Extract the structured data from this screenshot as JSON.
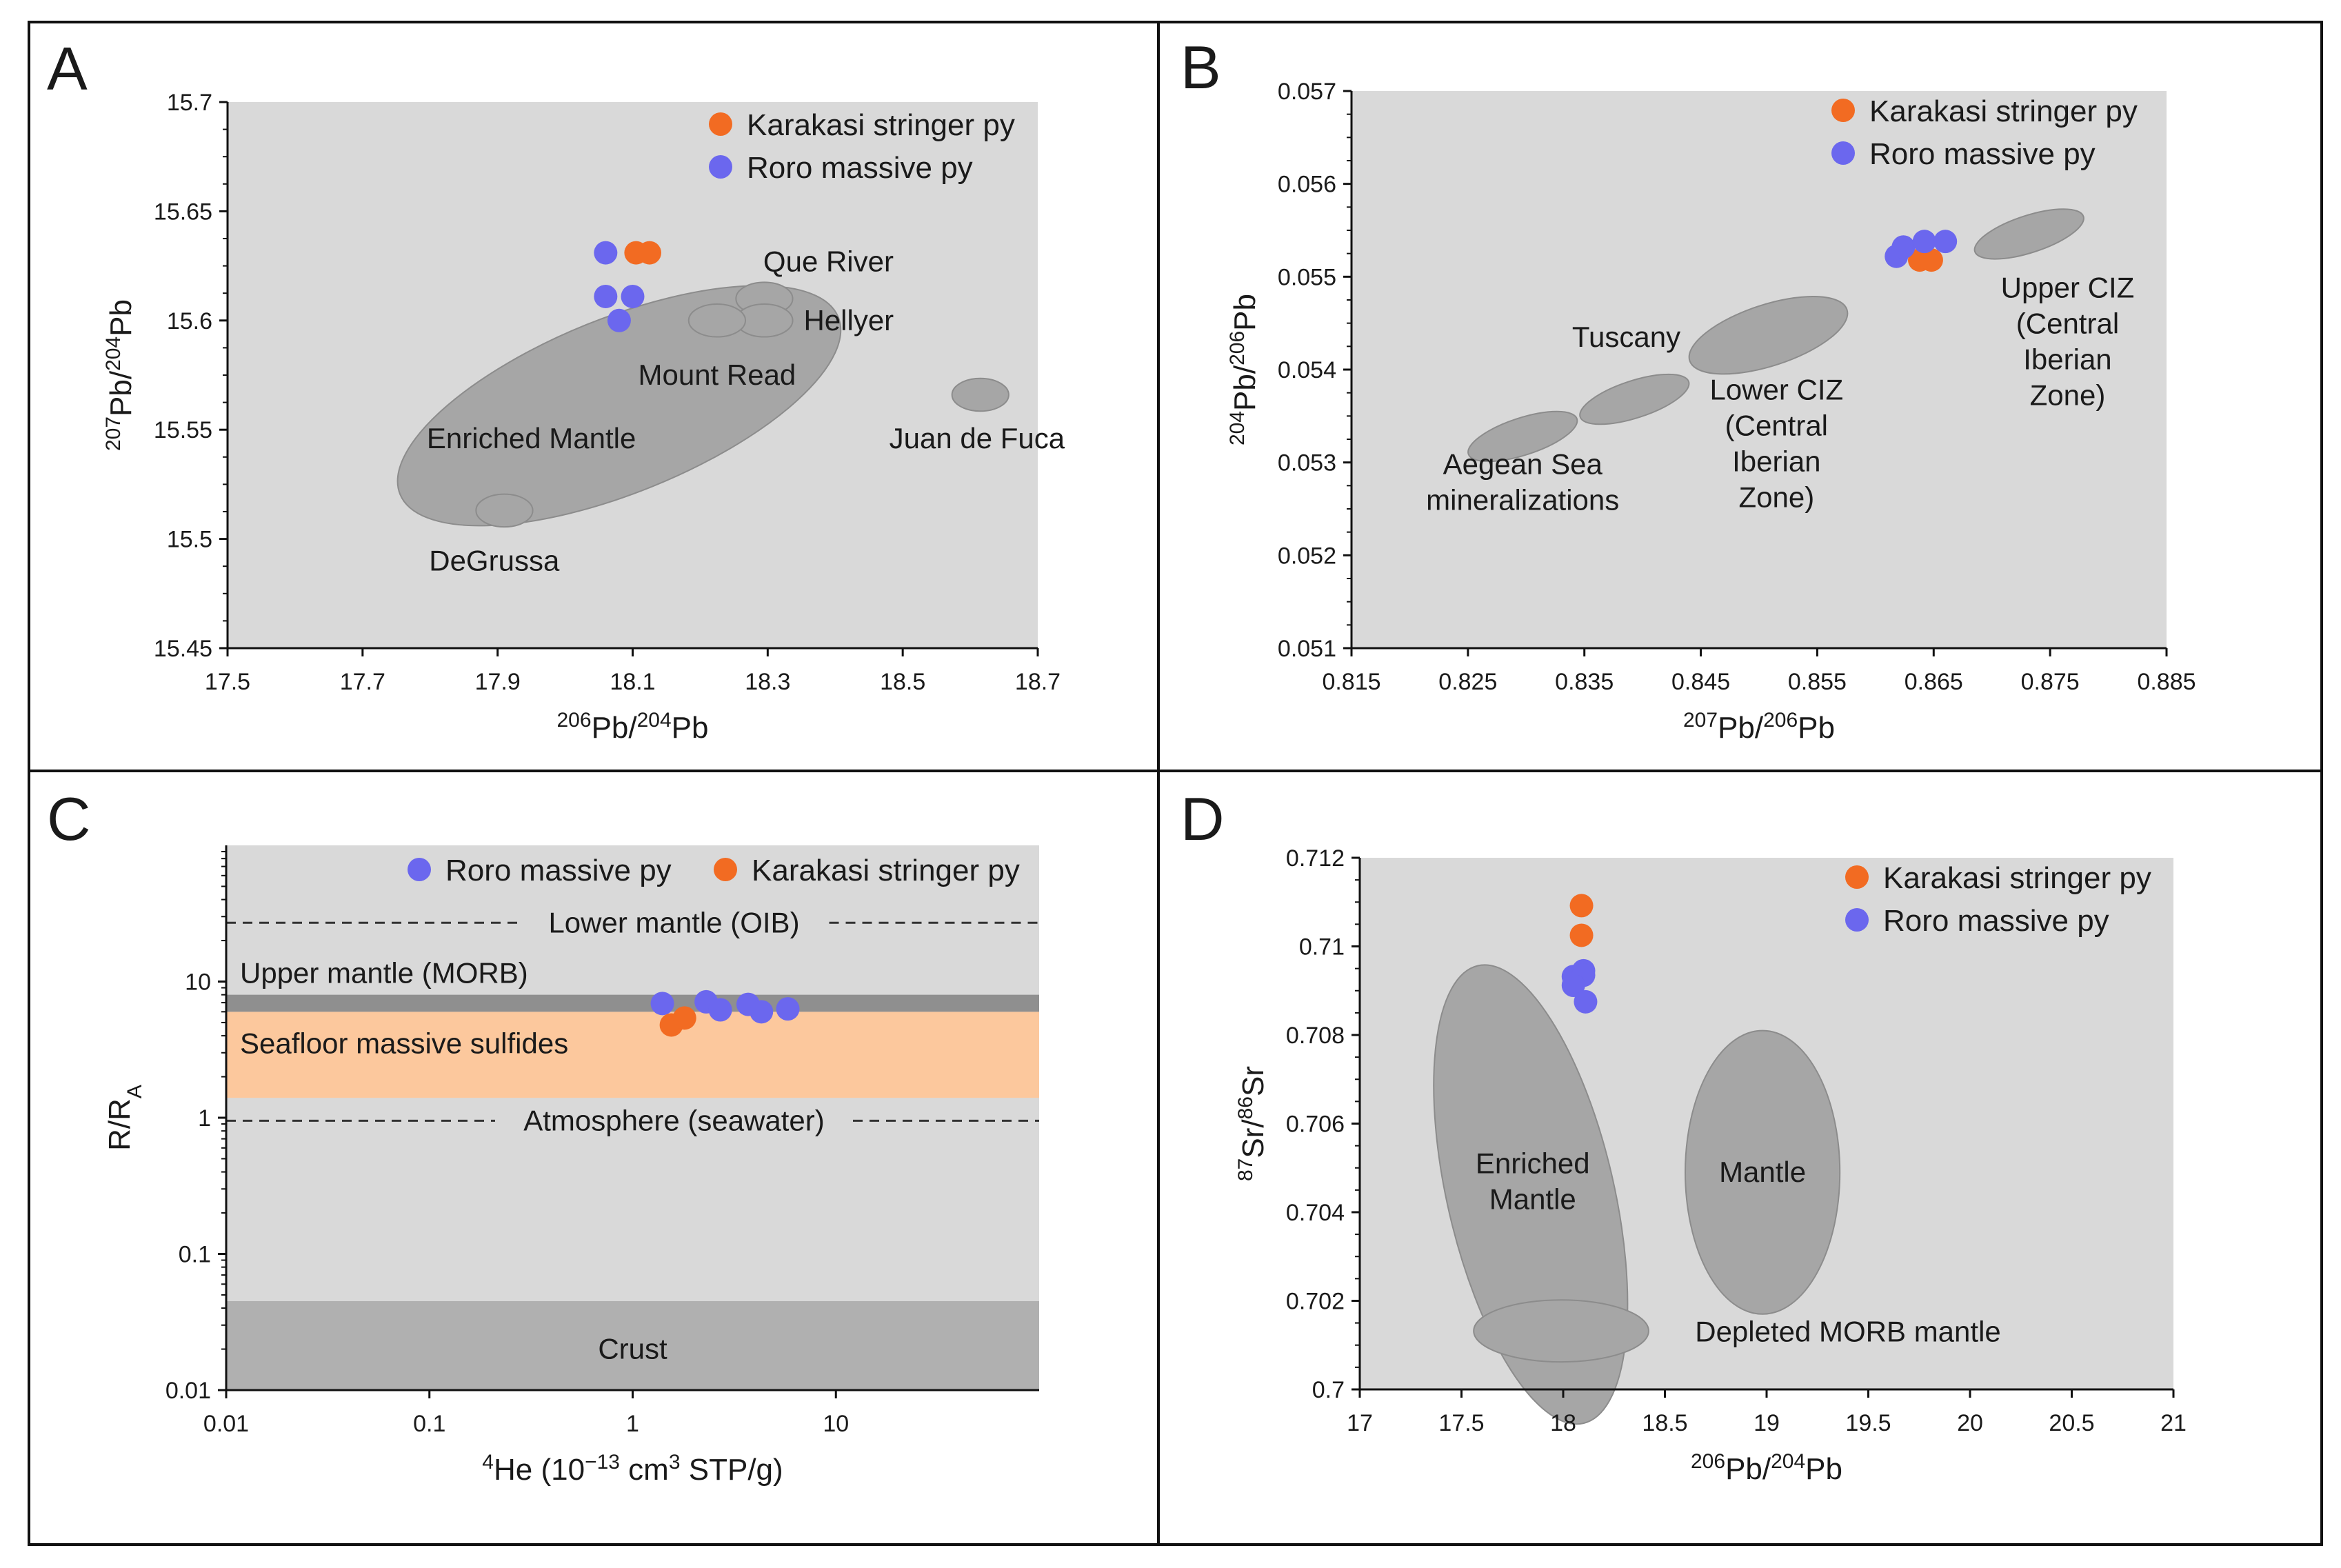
{
  "colors": {
    "karakasi": "#f26b22",
    "roro": "#6b67ee",
    "plot_bg": "#d9d9d9",
    "field_fill": "#a6a6a6",
    "field_stroke": "#8c8c8c",
    "crust_fill": "#b0b0b0",
    "upper_mantle_band": "#8f8f8f",
    "sulfide_band": "#fcc89d"
  },
  "chart_data": [
    {
      "id": "A",
      "type": "scatter",
      "panel_label": "A",
      "xlabel": {
        "sup1": "206",
        "base1": "Pb/",
        "sup2": "204",
        "base2": "Pb"
      },
      "ylabel": {
        "sup1": "207",
        "base1": "Pb/",
        "sup2": "204",
        "base2": "Pb"
      },
      "xlim": [
        17.5,
        18.7
      ],
      "ylim": [
        15.45,
        15.7
      ],
      "xticks": [
        "17.5",
        "17.7",
        "17.9",
        "18.1",
        "18.3",
        "18.5",
        "18.7"
      ],
      "yticks": [
        "15.45",
        "15.5",
        "15.55",
        "15.6",
        "15.65",
        "15.7"
      ],
      "legend": [
        "Karakasi stringer py",
        "Roro massive py"
      ],
      "series": [
        {
          "name": "Karakasi stringer py",
          "color_key": "karakasi",
          "points": [
            [
              18.105,
              15.631
            ],
            [
              18.125,
              15.631
            ]
          ]
        },
        {
          "name": "Roro massive py",
          "color_key": "roro",
          "points": [
            [
              18.06,
              15.631
            ],
            [
              18.06,
              15.611
            ],
            [
              18.08,
              15.6
            ],
            [
              18.1,
              15.611
            ]
          ]
        }
      ],
      "fields": [
        {
          "label": "Enriched Mantle",
          "cx": 18.08,
          "cy": 15.561,
          "rx": 0.35,
          "ry": 0.04,
          "rot": -22
        },
        {
          "label": "Que River",
          "cx": 18.295,
          "cy": 15.61,
          "rx": 0.042,
          "ry": 0.0075,
          "rot": 0
        },
        {
          "label": "Hellyer",
          "cx": 18.295,
          "cy": 15.6,
          "rx": 0.042,
          "ry": 0.0075,
          "rot": 0
        },
        {
          "label": "Mount Read",
          "cx": 18.225,
          "cy": 15.6,
          "rx": 0.042,
          "ry": 0.0075,
          "rot": 0
        },
        {
          "label": "Juan de Fuca",
          "cx": 18.615,
          "cy": 15.566,
          "rx": 0.042,
          "ry": 0.0075,
          "rot": 0
        },
        {
          "label": "DeGrussa",
          "cx": 17.91,
          "cy": 15.513,
          "rx": 0.042,
          "ry": 0.0075,
          "rot": 0
        }
      ],
      "annotations": [
        {
          "text": "Enriched Mantle",
          "x": 17.95,
          "y": 15.546
        },
        {
          "text": "Que River",
          "x": 18.39,
          "y": 15.627
        },
        {
          "text": "Hellyer",
          "x": 18.42,
          "y": 15.6
        },
        {
          "text": "Mount Read",
          "x": 18.225,
          "y": 15.575
        },
        {
          "text": "Juan de Fuca",
          "x": 18.61,
          "y": 15.546
        },
        {
          "text": "DeGrussa",
          "x": 17.895,
          "y": 15.49
        }
      ]
    },
    {
      "id": "B",
      "type": "scatter",
      "panel_label": "B",
      "xlabel": {
        "sup1": "207",
        "base1": "Pb/",
        "sup2": "206",
        "base2": "Pb"
      },
      "ylabel": {
        "sup1": "204",
        "base1": "Pb/",
        "sup2": "206",
        "base2": "Pb"
      },
      "xlim": [
        0.815,
        0.885
      ],
      "ylim": [
        0.051,
        0.057
      ],
      "xticks": [
        "0.815",
        "0.825",
        "0.835",
        "0.845",
        "0.855",
        "0.865",
        "0.875",
        "0.885"
      ],
      "yticks": [
        "0.051",
        "0.052",
        "0.053",
        "0.054",
        "0.055",
        "0.056",
        "0.057"
      ],
      "legend": [
        "Karakasi stringer py",
        "Roro massive py"
      ],
      "series": [
        {
          "name": "Karakasi stringer py",
          "color_key": "karakasi",
          "points": [
            [
              0.8638,
              0.05518
            ],
            [
              0.8648,
              0.05518
            ]
          ]
        },
        {
          "name": "Roro massive py",
          "color_key": "roro",
          "points": [
            [
              0.8618,
              0.05522
            ],
            [
              0.8624,
              0.05532
            ],
            [
              0.8642,
              0.05538
            ],
            [
              0.866,
              0.05538
            ]
          ]
        }
      ],
      "fields": [
        {
          "label": "Aegean Sea mineralizations",
          "cx": 0.8297,
          "cy": 0.05328,
          "rx": 0.0049,
          "ry": 0.0002,
          "rot": -18
        },
        {
          "label": "Tuscany",
          "cx": 0.8393,
          "cy": 0.05368,
          "rx": 0.0049,
          "ry": 0.0002,
          "rot": -18
        },
        {
          "label": "Lower CIZ (Central Iberian Zone)",
          "cx": 0.8508,
          "cy": 0.05437,
          "rx": 0.0071,
          "ry": 0.00033,
          "rot": -18
        },
        {
          "label": "Upper CIZ (Central Iberian Zone)",
          "cx": 0.8732,
          "cy": 0.05546,
          "rx": 0.0049,
          "ry": 0.0002,
          "rot": -18
        }
      ],
      "annotations": [
        {
          "lines": [
            "Aegean Sea",
            "mineralizations"
          ],
          "x": 0.8297,
          "y": 0.05298
        },
        {
          "lines": [
            "Tuscany"
          ],
          "x": 0.8386,
          "y": 0.05435
        },
        {
          "lines": [
            "Lower CIZ",
            "(Central",
            "Iberian",
            "Zone)"
          ],
          "x": 0.8515,
          "y": 0.05378
        },
        {
          "lines": [
            "Upper CIZ",
            "(Central",
            "Iberian",
            "Zone)"
          ],
          "x": 0.8765,
          "y": 0.05488
        }
      ]
    },
    {
      "id": "C",
      "type": "scatter",
      "panel_label": "C",
      "xscale": "log",
      "yscale": "log",
      "xlabel": {
        "sup1": "4",
        "base1": "He (10",
        "sup2": "−13",
        "base2": " cm",
        "sup3": "3",
        "base3": " STP/g)"
      },
      "ylabel": {
        "base1": "R/R",
        "sub1": "A"
      },
      "xlim": [
        0.01,
        100
      ],
      "ylim": [
        0.01,
        100
      ],
      "xticks": [
        "0.01",
        "0.1",
        "1",
        "10"
      ],
      "yticks": [
        "0.01",
        "0.1",
        "1",
        "10"
      ],
      "legend": [
        "Roro massive py",
        "Karakasi stringer py"
      ],
      "bands": [
        {
          "label": "Crust",
          "from": 0.01,
          "to": 0.045,
          "color_key": "crust_fill"
        },
        {
          "label": "Seafloor massive sulfides",
          "from": 1.4,
          "to": 6.0,
          "color_key": "sulfide_band"
        },
        {
          "label": "Upper mantle (MORB)",
          "from": 6.0,
          "to": 8.0,
          "color_key": "upper_mantle_band"
        }
      ],
      "reference_lines": [
        {
          "label": "Lower mantle (OIB)",
          "y": 27
        },
        {
          "label": "Atmosphere (seawater)",
          "y": 0.95
        }
      ],
      "annotations": [
        {
          "text": "Upper mantle (MORB)",
          "x": 0.011,
          "y": 11.5
        },
        {
          "text": "Seafloor massive sulfides",
          "x": 0.011,
          "y": 3.5
        },
        {
          "text": "Crust",
          "x": 1.0,
          "y": 0.02
        }
      ],
      "series": [
        {
          "name": "Roro massive py",
          "color_key": "roro",
          "points": [
            [
              1.4,
              6.9
            ],
            [
              2.3,
              7.1
            ],
            [
              2.7,
              6.2
            ],
            [
              3.7,
              6.8
            ],
            [
              4.3,
              6.0
            ],
            [
              5.8,
              6.3
            ]
          ]
        },
        {
          "name": "Karakasi stringer py",
          "color_key": "karakasi",
          "points": [
            [
              1.55,
              4.8
            ],
            [
              1.8,
              5.4
            ]
          ]
        }
      ]
    },
    {
      "id": "D",
      "type": "scatter",
      "panel_label": "D",
      "xlabel": {
        "sup1": "206",
        "base1": "Pb/",
        "sup2": "204",
        "base2": "Pb"
      },
      "ylabel": {
        "sup1": "87",
        "base1": "Sr/",
        "sup2": "86",
        "base2": "Sr"
      },
      "xlim": [
        17,
        21
      ],
      "ylim": [
        0.7,
        0.712
      ],
      "xticks": [
        "17",
        "17.5",
        "18",
        "18.5",
        "19",
        "19.5",
        "20",
        "20.5",
        "21"
      ],
      "yticks": [
        "0.7",
        "0.702",
        "0.704",
        "0.706",
        "0.708",
        "0.71",
        "0.712"
      ],
      "legend": [
        "Karakasi stringer py",
        "Roro massive py"
      ],
      "series": [
        {
          "name": "Karakasi stringer py",
          "color_key": "karakasi",
          "points": [
            [
              18.09,
              0.71092
            ],
            [
              18.09,
              0.71025
            ]
          ]
        },
        {
          "name": "Roro massive py",
          "color_key": "roro",
          "points": [
            [
              18.05,
              0.70932
            ],
            [
              18.1,
              0.70945
            ],
            [
              18.1,
              0.70935
            ],
            [
              18.05,
              0.70912
            ],
            [
              18.11,
              0.70875
            ]
          ]
        }
      ],
      "fields": [
        {
          "label": "Enriched Mantle",
          "cx": 17.84,
          "cy": 0.7044,
          "rx": 0.41,
          "ry": 0.0053,
          "rot": -13
        },
        {
          "label": "Mantle",
          "cx": 18.98,
          "cy": 0.7049,
          "rx": 0.38,
          "ry": 0.0032,
          "rot": 0
        },
        {
          "label": "Depleted MORB mantle",
          "cx": 17.99,
          "cy": 0.70132,
          "rx": 0.43,
          "ry": 0.0007,
          "rot": 0
        }
      ],
      "annotations": [
        {
          "lines": [
            "Enriched",
            "Mantle"
          ],
          "x": 17.85,
          "y": 0.7051
        },
        {
          "lines": [
            "Mantle"
          ],
          "x": 18.98,
          "y": 0.7049
        },
        {
          "lines": [
            "Depleted MORB mantle"
          ],
          "x": 19.4,
          "y": 0.7013
        }
      ]
    }
  ]
}
